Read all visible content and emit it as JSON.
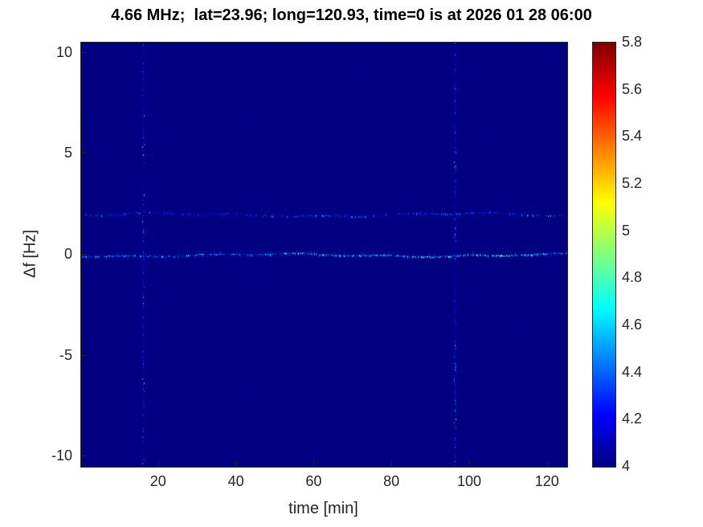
{
  "title": "4.66 MHz;  lat=23.96; long=120.93, time=0 is at 2026 01 28 06:00",
  "chart_data": {
    "type": "heatmap",
    "title": "4.66 MHz;  lat=23.96; long=120.93, time=0 is at 2026 01 28 06:00",
    "xlabel": "time [min]",
    "ylabel": "Δf [Hz]",
    "x_range": [
      0,
      125
    ],
    "y_range": [
      -10.5,
      10.5
    ],
    "x_ticks": [
      20,
      40,
      60,
      80,
      100,
      120
    ],
    "y_ticks": [
      10,
      5,
      0,
      -5,
      -10
    ],
    "grid": false,
    "colorbar": {
      "min": 4,
      "max": 5.8,
      "ticks": [
        5.8,
        5.6,
        5.4,
        5.2,
        5,
        4.8,
        4.6,
        4.4,
        4.2,
        4
      ],
      "colormap": "jet",
      "position": "right"
    },
    "background_value": 4.0,
    "features": {
      "horizontal_traces": [
        {
          "y_hz": 0,
          "value_range": [
            4.3,
            5.1
          ],
          "description": "speckled Doppler trace at 0 Hz across full time span, brightest (green) near t=90-110 min"
        },
        {
          "y_hz": 2,
          "value_range": [
            4.15,
            4.9
          ],
          "description": "fainter speckled trace at +2 Hz across full time span, slightly brighter near right edge"
        }
      ],
      "vertical_stripes": [
        {
          "t_min": 16,
          "value_range": [
            4.05,
            4.6
          ],
          "description": "faint blue vertical interference stripe spanning all frequencies"
        },
        {
          "t_min": 96,
          "value_range": [
            4.05,
            4.7
          ],
          "description": "faint blue vertical interference stripe spanning all frequencies"
        }
      ]
    }
  }
}
